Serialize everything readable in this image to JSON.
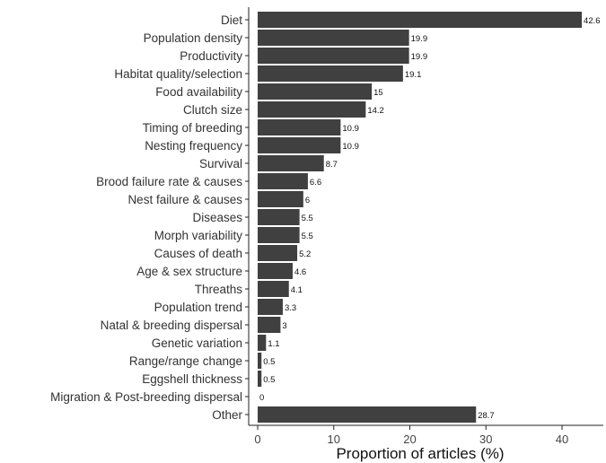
{
  "chart_data": {
    "type": "bar",
    "orientation": "horizontal",
    "categories": [
      "Diet",
      "Population density",
      "Productivity",
      "Habitat quality/selection",
      "Food availability",
      "Clutch size",
      "Timing of breeding",
      "Nesting frequency",
      "Survival",
      "Brood failure rate & causes",
      "Nest failure & causes",
      "Diseases",
      "Morph variability",
      "Causes of death",
      "Age & sex structure",
      "Threaths",
      "Population trend",
      "Natal & breeding dispersal",
      "Genetic variation",
      "Range/range change",
      "Eggshell thickness",
      "Migration & Post-breeding dispersal",
      "Other"
    ],
    "values": [
      42.6,
      19.9,
      19.9,
      19.1,
      15,
      14.2,
      10.9,
      10.9,
      8.7,
      6.6,
      6,
      5.5,
      5.5,
      5.2,
      4.6,
      4.1,
      3.3,
      3,
      1.1,
      0.5,
      0.5,
      0,
      28.7
    ],
    "value_labels": [
      "42.6",
      "19.9",
      "19.9",
      "19.1",
      "15",
      "14.2",
      "10.9",
      "10.9",
      "8.7",
      "6.6",
      "6",
      "5.5",
      "5.5",
      "5.2",
      "4.6",
      "4.1",
      "3.3",
      "3",
      "1.1",
      "0.5",
      "0.5",
      "0",
      "28.7"
    ],
    "title": "",
    "xlabel": "Proportion of articles (%)",
    "ylabel": "",
    "xlim": [
      0,
      45
    ],
    "xticks": [
      0,
      10,
      20,
      30,
      40
    ],
    "grid": false,
    "legend": "none",
    "bar_color": "#404040"
  }
}
